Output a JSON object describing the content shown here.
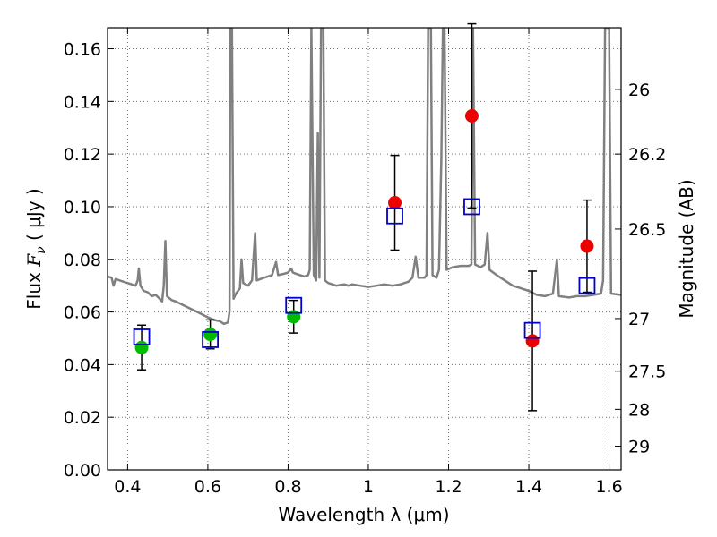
{
  "chart_data": {
    "type": "scatter",
    "xlabel": "Wavelength  λ (μm)",
    "ylabel_prefix": "Flux  ",
    "ylabel_var": "F",
    "ylabel_sub": "ν",
    "ylabel_units": "  ( μJy )",
    "y2label": "Magnitude (AB)",
    "xlim": [
      0.35,
      1.63
    ],
    "ylim": [
      0.0,
      0.168
    ],
    "grid": true,
    "x_ticks": [
      {
        "value": 0.4,
        "label": "0.4"
      },
      {
        "value": 0.6,
        "label": "0.6"
      },
      {
        "value": 0.8,
        "label": "0.8"
      },
      {
        "value": 1.0,
        "label": "1"
      },
      {
        "value": 1.2,
        "label": "1.2"
      },
      {
        "value": 1.4,
        "label": "1.4"
      },
      {
        "value": 1.6,
        "label": "1.6"
      }
    ],
    "y_ticks": [
      {
        "value": 0.0,
        "label": "0.00"
      },
      {
        "value": 0.02,
        "label": "0.02"
      },
      {
        "value": 0.04,
        "label": "0.04"
      },
      {
        "value": 0.06,
        "label": "0.06"
      },
      {
        "value": 0.08,
        "label": "0.08"
      },
      {
        "value": 0.1,
        "label": "0.10"
      },
      {
        "value": 0.12,
        "label": "0.12"
      },
      {
        "value": 0.14,
        "label": "0.14"
      },
      {
        "value": 0.16,
        "label": "0.16"
      }
    ],
    "y2_ticks": [
      {
        "flux": 0.1445,
        "label": "26"
      },
      {
        "flux": 0.12,
        "label": "26.2"
      },
      {
        "flux": 0.0915,
        "label": "26.5"
      },
      {
        "flux": 0.0575,
        "label": "27"
      },
      {
        "flux": 0.0375,
        "label": "27.5"
      },
      {
        "flux": 0.023,
        "label": "28"
      },
      {
        "flux": 0.009,
        "label": "29"
      }
    ],
    "series": [
      {
        "marker": "circle",
        "color": "#00bb00",
        "points": [
          {
            "x": 0.435,
            "y": 0.0465,
            "err_low": 0.0085,
            "err_high": 0.0085
          },
          {
            "x": 0.606,
            "y": 0.0515,
            "err_low": 0.0055,
            "err_high": 0.0055
          },
          {
            "x": 0.814,
            "y": 0.0582,
            "err_low": 0.0062,
            "err_high": 0.0062
          }
        ]
      },
      {
        "marker": "circle",
        "color": "#ee0000",
        "points": [
          {
            "x": 1.066,
            "y": 0.1015,
            "err_low": 0.018,
            "err_high": 0.018
          },
          {
            "x": 1.258,
            "y": 0.1345,
            "err_low": 0.035,
            "err_high": 0.035
          },
          {
            "x": 1.409,
            "y": 0.049,
            "err_low": 0.0265,
            "err_high": 0.0265
          },
          {
            "x": 1.545,
            "y": 0.085,
            "err_low": 0.0175,
            "err_high": 0.0175
          }
        ]
      },
      {
        "marker": "open-square",
        "color": "#0000cc",
        "points": [
          {
            "x": 0.435,
            "y": 0.0505
          },
          {
            "x": 0.606,
            "y": 0.0495
          },
          {
            "x": 0.814,
            "y": 0.0625
          },
          {
            "x": 1.066,
            "y": 0.0965
          },
          {
            "x": 1.258,
            "y": 0.1
          },
          {
            "x": 1.409,
            "y": 0.053
          },
          {
            "x": 1.545,
            "y": 0.07
          }
        ]
      },
      {
        "type": "line",
        "color": "#808080",
        "points": [
          [
            0.35,
            0.0735
          ],
          [
            0.36,
            0.073
          ],
          [
            0.365,
            0.07
          ],
          [
            0.37,
            0.0725
          ],
          [
            0.38,
            0.072
          ],
          [
            0.39,
            0.0715
          ],
          [
            0.4,
            0.071
          ],
          [
            0.41,
            0.0705
          ],
          [
            0.42,
            0.07
          ],
          [
            0.425,
            0.072
          ],
          [
            0.428,
            0.0765
          ],
          [
            0.432,
            0.07
          ],
          [
            0.44,
            0.068
          ],
          [
            0.45,
            0.0675
          ],
          [
            0.46,
            0.066
          ],
          [
            0.47,
            0.0665
          ],
          [
            0.48,
            0.065
          ],
          [
            0.486,
            0.064
          ],
          [
            0.49,
            0.07
          ],
          [
            0.494,
            0.087
          ],
          [
            0.498,
            0.066
          ],
          [
            0.51,
            0.0645
          ],
          [
            0.52,
            0.064
          ],
          [
            0.54,
            0.0625
          ],
          [
            0.56,
            0.061
          ],
          [
            0.58,
            0.0595
          ],
          [
            0.6,
            0.058
          ],
          [
            0.615,
            0.057
          ],
          [
            0.63,
            0.0565
          ],
          [
            0.64,
            0.0555
          ],
          [
            0.65,
            0.056
          ],
          [
            0.654,
            0.06
          ],
          [
            0.656,
            0.168
          ],
          [
            0.66,
            0.168
          ],
          [
            0.664,
            0.065
          ],
          [
            0.67,
            0.067
          ],
          [
            0.68,
            0.069
          ],
          [
            0.684,
            0.08
          ],
          [
            0.688,
            0.071
          ],
          [
            0.7,
            0.07
          ],
          [
            0.71,
            0.072
          ],
          [
            0.718,
            0.09
          ],
          [
            0.722,
            0.072
          ],
          [
            0.74,
            0.073
          ],
          [
            0.76,
            0.074
          ],
          [
            0.77,
            0.079
          ],
          [
            0.775,
            0.074
          ],
          [
            0.79,
            0.0745
          ],
          [
            0.8,
            0.075
          ],
          [
            0.808,
            0.0765
          ],
          [
            0.812,
            0.075
          ],
          [
            0.82,
            0.0745
          ],
          [
            0.84,
            0.0735
          ],
          [
            0.85,
            0.074
          ],
          [
            0.854,
            0.076
          ],
          [
            0.858,
            0.168
          ],
          [
            0.864,
            0.074
          ],
          [
            0.87,
            0.072
          ],
          [
            0.874,
            0.128
          ],
          [
            0.878,
            0.073
          ],
          [
            0.882,
            0.168
          ],
          [
            0.888,
            0.168
          ],
          [
            0.892,
            0.072
          ],
          [
            0.9,
            0.071
          ],
          [
            0.92,
            0.07
          ],
          [
            0.94,
            0.0705
          ],
          [
            0.95,
            0.07
          ],
          [
            0.96,
            0.0705
          ],
          [
            0.98,
            0.07
          ],
          [
            1.0,
            0.0695
          ],
          [
            1.02,
            0.07
          ],
          [
            1.04,
            0.0705
          ],
          [
            1.06,
            0.07
          ],
          [
            1.08,
            0.0705
          ],
          [
            1.09,
            0.071
          ],
          [
            1.1,
            0.0715
          ],
          [
            1.11,
            0.073
          ],
          [
            1.118,
            0.081
          ],
          [
            1.125,
            0.073
          ],
          [
            1.14,
            0.073
          ],
          [
            1.145,
            0.074
          ],
          [
            1.149,
            0.168
          ],
          [
            1.156,
            0.168
          ],
          [
            1.16,
            0.074
          ],
          [
            1.17,
            0.073
          ],
          [
            1.176,
            0.076
          ],
          [
            1.182,
            0.118
          ],
          [
            1.186,
            0.168
          ],
          [
            1.19,
            0.168
          ],
          [
            1.195,
            0.076
          ],
          [
            1.21,
            0.077
          ],
          [
            1.23,
            0.0775
          ],
          [
            1.25,
            0.0775
          ],
          [
            1.257,
            0.078
          ],
          [
            1.261,
            0.168
          ],
          [
            1.266,
            0.078
          ],
          [
            1.28,
            0.077
          ],
          [
            1.29,
            0.078
          ],
          [
            1.297,
            0.09
          ],
          [
            1.302,
            0.076
          ],
          [
            1.32,
            0.074
          ],
          [
            1.34,
            0.072
          ],
          [
            1.36,
            0.07
          ],
          [
            1.38,
            0.069
          ],
          [
            1.4,
            0.068
          ],
          [
            1.42,
            0.0665
          ],
          [
            1.44,
            0.066
          ],
          [
            1.46,
            0.067
          ],
          [
            1.47,
            0.08
          ],
          [
            1.475,
            0.066
          ],
          [
            1.5,
            0.0655
          ],
          [
            1.52,
            0.066
          ],
          [
            1.54,
            0.066
          ],
          [
            1.56,
            0.0665
          ],
          [
            1.58,
            0.067
          ],
          [
            1.585,
            0.072
          ],
          [
            1.59,
            0.168
          ],
          [
            1.6,
            0.168
          ],
          [
            1.605,
            0.067
          ],
          [
            1.63,
            0.0665
          ]
        ]
      }
    ]
  }
}
